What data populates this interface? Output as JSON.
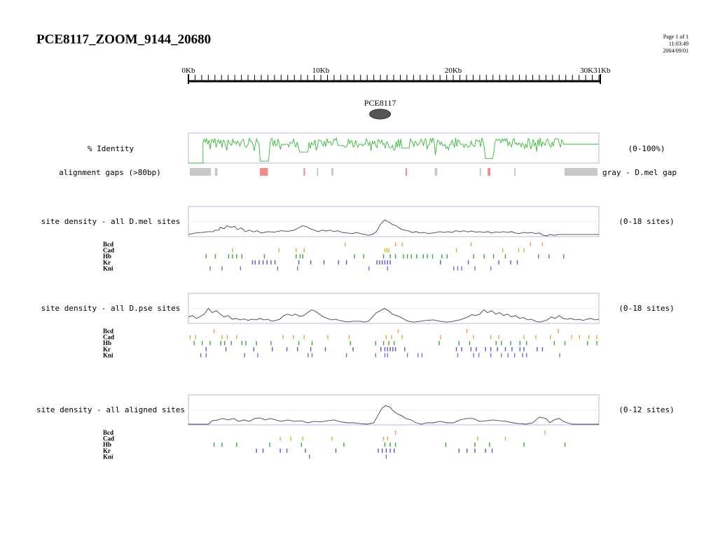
{
  "header": {
    "title": "PCE8117_ZOOM_9144_20680",
    "page": "Page 1 of 1",
    "time": "11:03:49",
    "date": "2004/09/01"
  },
  "ruler": {
    "ticks": [
      {
        "label": "0Kb",
        "kb": 0
      },
      {
        "label": "10Kb",
        "kb": 10
      },
      {
        "label": "20Kb",
        "kb": 20
      },
      {
        "label": "30K",
        "kb": 30
      },
      {
        "label": "31Kb",
        "kb": 31
      }
    ],
    "max_kb": 31
  },
  "feature": {
    "label": "PCE8117",
    "center_kb": 15.0
  },
  "identity": {
    "label": "% Identity",
    "range_label": "(0-100%)",
    "color": "#33bb33"
  },
  "gaps": {
    "label": "alignment gaps (>80bp)",
    "legend": "gray - D.mel gap",
    "gray_color": "#c8c8c8",
    "red_color": "#f28a8a",
    "items": [
      {
        "start": 0.1,
        "end": 1.7,
        "type": "gray"
      },
      {
        "start": 2.0,
        "end": 2.2,
        "type": "gray"
      },
      {
        "start": 5.4,
        "end": 6.0,
        "type": "red"
      },
      {
        "start": 8.7,
        "end": 8.8,
        "type": "red"
      },
      {
        "start": 9.7,
        "end": 9.8,
        "type": "gray"
      },
      {
        "start": 10.8,
        "end": 10.95,
        "type": "gray"
      },
      {
        "start": 16.4,
        "end": 16.5,
        "type": "red"
      },
      {
        "start": 18.6,
        "end": 18.8,
        "type": "gray"
      },
      {
        "start": 22.0,
        "end": 22.1,
        "type": "gray"
      },
      {
        "start": 22.6,
        "end": 22.8,
        "type": "red"
      },
      {
        "start": 24.6,
        "end": 24.7,
        "type": "gray"
      },
      {
        "start": 28.4,
        "end": 30.9,
        "type": "gray"
      }
    ]
  },
  "factor_colors": {
    "Bcd": "#ff9955",
    "Cad": "#d7b23c",
    "Hb": "#33aa33",
    "Kr": "#5555dd",
    "Kni": "#8866dd"
  },
  "panels": [
    {
      "id": "dmel",
      "label": "site density - all D.mel sites",
      "range_label": "(0-18 sites)",
      "sites": {
        "Bcd": [
          11.8,
          15.6,
          16.1,
          21.3,
          25.8,
          26.7
        ],
        "Cad": [
          3.3,
          6.8,
          8.1,
          8.7,
          14.8,
          14.95,
          15.1,
          20.2,
          23.7,
          24.9,
          25.3
        ],
        "Hb": [
          1.3,
          2.0,
          3.0,
          3.3,
          3.6,
          4.0,
          5.7,
          8.1,
          8.4,
          8.6,
          12.5,
          13.2,
          14.7,
          15.2,
          15.6,
          16.2,
          16.5,
          16.8,
          17.2,
          17.7,
          18.0,
          18.4,
          19.1,
          19.5,
          21.5,
          22.3,
          23.0,
          23.9,
          26.4,
          27.2,
          28.3
        ],
        "Kr": [
          4.8,
          5.0,
          5.3,
          5.6,
          5.9,
          6.2,
          6.5,
          8.3,
          9.2,
          10.2,
          11.3,
          11.9,
          14.2,
          14.4,
          14.6,
          14.8,
          15.0,
          15.2,
          19.0,
          21.1,
          23.4,
          24.3,
          24.8
        ],
        "Kni": [
          1.6,
          2.5,
          3.9,
          6.7,
          8.2,
          13.6,
          15.0,
          20.0,
          20.3,
          20.6,
          21.6,
          22.8
        ]
      },
      "density": [
        [
          0,
          0.05
        ],
        [
          0.5,
          0.1
        ],
        [
          1,
          0.12
        ],
        [
          1.5,
          0.15
        ],
        [
          1.9,
          0.15
        ],
        [
          2,
          0.2
        ],
        [
          2.3,
          0.2
        ],
        [
          2.4,
          0.3
        ],
        [
          2.7,
          0.25
        ],
        [
          2.9,
          0.35
        ],
        [
          3.2,
          0.3
        ],
        [
          3.5,
          0.33
        ],
        [
          3.7,
          0.22
        ],
        [
          4,
          0.28
        ],
        [
          4.3,
          0.15
        ],
        [
          4.6,
          0.2
        ],
        [
          4.9,
          0.14
        ],
        [
          5.2,
          0.18
        ],
        [
          5.5,
          0.1
        ],
        [
          6,
          0.15
        ],
        [
          6.5,
          0.13
        ],
        [
          7,
          0.18
        ],
        [
          7.5,
          0.16
        ],
        [
          8,
          0.2
        ],
        [
          8.3,
          0.28
        ],
        [
          8.6,
          0.35
        ],
        [
          8.9,
          0.33
        ],
        [
          9.2,
          0.25
        ],
        [
          9.5,
          0.2
        ],
        [
          9.8,
          0.15
        ],
        [
          10.1,
          0.2
        ],
        [
          10.4,
          0.17
        ],
        [
          10.7,
          0.2
        ],
        [
          11,
          0.15
        ],
        [
          11.3,
          0.18
        ],
        [
          11.6,
          0.12
        ],
        [
          12,
          0.1
        ],
        [
          12.4,
          0.08
        ],
        [
          12.7,
          0.12
        ],
        [
          13,
          0.08
        ],
        [
          13.3,
          0.05
        ],
        [
          13.6,
          0.02
        ],
        [
          13.9,
          0.05
        ],
        [
          14.2,
          0.15
        ],
        [
          14.5,
          0.4
        ],
        [
          14.8,
          0.55
        ],
        [
          15.1,
          0.5
        ],
        [
          15.4,
          0.4
        ],
        [
          15.7,
          0.35
        ],
        [
          16,
          0.25
        ],
        [
          16.3,
          0.2
        ],
        [
          16.6,
          0.18
        ],
        [
          16.9,
          0.12
        ],
        [
          17.2,
          0.15
        ],
        [
          17.5,
          0.1
        ],
        [
          17.8,
          0.12
        ],
        [
          18.1,
          0.08
        ],
        [
          18.4,
          0.1
        ],
        [
          18.7,
          0.12
        ],
        [
          19,
          0.15
        ],
        [
          19.3,
          0.12
        ],
        [
          19.6,
          0.15
        ],
        [
          19.9,
          0.12
        ],
        [
          20.2,
          0.18
        ],
        [
          20.5,
          0.15
        ],
        [
          20.8,
          0.18
        ],
        [
          21.1,
          0.14
        ],
        [
          21.4,
          0.17
        ],
        [
          21.7,
          0.13
        ],
        [
          22,
          0.15
        ],
        [
          22.3,
          0.12
        ],
        [
          22.6,
          0.15
        ],
        [
          22.9,
          0.1
        ],
        [
          23.2,
          0.14
        ],
        [
          23.5,
          0.12
        ],
        [
          23.8,
          0.15
        ],
        [
          24.1,
          0.12
        ],
        [
          24.4,
          0.15
        ],
        [
          24.7,
          0.1
        ],
        [
          25,
          0.08
        ],
        [
          25.3,
          0.12
        ],
        [
          25.6,
          0.1
        ],
        [
          25.9,
          0.12
        ],
        [
          26.2,
          0.08
        ],
        [
          26.5,
          0.1
        ],
        [
          26.8,
          0.02
        ],
        [
          27.1,
          0.0
        ],
        [
          27.3,
          0.05
        ],
        [
          27.6,
          0.02
        ],
        [
          28,
          0.05
        ],
        [
          29,
          0.05
        ],
        [
          31,
          0.05
        ]
      ]
    },
    {
      "id": "dpse",
      "label": "site density - all D.pse sites",
      "range_label": "(0-18 sites)",
      "sites": {
        "Bcd": [
          1.9,
          15.8,
          21.0,
          27.9
        ],
        "Cad": [
          0.1,
          0.5,
          2.5,
          2.9,
          3.6,
          7.1,
          7.9,
          8.7,
          10.5,
          12.1,
          14.9,
          15.3,
          16.1,
          19.0,
          21.5,
          22.8,
          23.4,
          25.3,
          26.2,
          27.3,
          28.9,
          29.5,
          30.2,
          30.8
        ],
        "Hb": [
          0.4,
          1.0,
          1.6,
          2.4,
          2.7,
          3.2,
          4.0,
          4.3,
          5.1,
          6.2,
          8.3,
          9.3,
          12.2,
          14.1,
          14.7,
          15.1,
          15.5,
          18.9,
          20.4,
          21.2,
          23.2,
          23.6,
          24.3,
          25.0,
          25.5,
          27.6,
          28.4,
          30.1,
          30.8
        ],
        "Kr": [
          1.3,
          2.8,
          4.9,
          6.3,
          7.4,
          8.2,
          9.2,
          10.3,
          12.4,
          14.5,
          14.8,
          15.0,
          15.2,
          15.4,
          15.6,
          16.3,
          20.2,
          20.6,
          21.3,
          21.7,
          22.4,
          22.8,
          23.3,
          23.9,
          24.4,
          25.0,
          25.3,
          26.3,
          26.7
        ],
        "Kni": [
          0.9,
          1.3,
          4.2,
          5.2,
          9.0,
          9.3,
          11.9,
          14.1,
          14.8,
          15.0,
          16.5,
          17.3,
          17.6,
          20.3,
          21.5,
          21.9,
          22.8,
          23.6,
          24.1,
          24.6,
          25.2,
          25.5,
          28.0
        ]
      },
      "density": [
        [
          0,
          0.2
        ],
        [
          0.3,
          0.25
        ],
        [
          0.6,
          0.15
        ],
        [
          0.9,
          0.22
        ],
        [
          1.2,
          0.3
        ],
        [
          1.5,
          0.5
        ],
        [
          1.8,
          0.35
        ],
        [
          2.1,
          0.42
        ],
        [
          2.4,
          0.3
        ],
        [
          2.7,
          0.2
        ],
        [
          3,
          0.25
        ],
        [
          3.3,
          0.12
        ],
        [
          3.6,
          0.15
        ],
        [
          3.9,
          0.1
        ],
        [
          4.2,
          0.13
        ],
        [
          4.5,
          0.08
        ],
        [
          4.8,
          0.12
        ],
        [
          5.1,
          0.1
        ],
        [
          5.4,
          0.15
        ],
        [
          5.7,
          0.1
        ],
        [
          6,
          0.12
        ],
        [
          6.3,
          0.05
        ],
        [
          6.6,
          0.08
        ],
        [
          6.9,
          0.12
        ],
        [
          7.2,
          0.25
        ],
        [
          7.5,
          0.3
        ],
        [
          7.8,
          0.25
        ],
        [
          8.1,
          0.3
        ],
        [
          8.4,
          0.22
        ],
        [
          8.7,
          0.25
        ],
        [
          9,
          0.35
        ],
        [
          9.3,
          0.45
        ],
        [
          9.6,
          0.4
        ],
        [
          9.9,
          0.3
        ],
        [
          10.2,
          0.2
        ],
        [
          10.5,
          0.15
        ],
        [
          10.8,
          0.1
        ],
        [
          11.1,
          0.12
        ],
        [
          11.4,
          0.08
        ],
        [
          11.7,
          0.05
        ],
        [
          12,
          0.03
        ],
        [
          12.5,
          0.05
        ],
        [
          13,
          0.05
        ],
        [
          13.3,
          0.02
        ],
        [
          13.6,
          0.05
        ],
        [
          13.9,
          0.2
        ],
        [
          14.2,
          0.35
        ],
        [
          14.5,
          0.42
        ],
        [
          14.8,
          0.5
        ],
        [
          15.1,
          0.42
        ],
        [
          15.4,
          0.3
        ],
        [
          15.7,
          0.25
        ],
        [
          16,
          0.2
        ],
        [
          16.3,
          0.12
        ],
        [
          16.6,
          0.05
        ],
        [
          17,
          0.02
        ],
        [
          17.5,
          0.05
        ],
        [
          18,
          0.08
        ],
        [
          18.5,
          0.1
        ],
        [
          19,
          0.05
        ],
        [
          19.5,
          0.02
        ],
        [
          20,
          0.05
        ],
        [
          20.5,
          0.1
        ],
        [
          20.8,
          0.15
        ],
        [
          21.1,
          0.2
        ],
        [
          21.4,
          0.28
        ],
        [
          21.7,
          0.25
        ],
        [
          22,
          0.3
        ],
        [
          22.3,
          0.45
        ],
        [
          22.6,
          0.35
        ],
        [
          22.9,
          0.42
        ],
        [
          23.2,
          0.3
        ],
        [
          23.5,
          0.35
        ],
        [
          23.8,
          0.25
        ],
        [
          24.1,
          0.3
        ],
        [
          24.4,
          0.2
        ],
        [
          24.7,
          0.25
        ],
        [
          25,
          0.15
        ],
        [
          25.3,
          0.18
        ],
        [
          25.6,
          0.1
        ],
        [
          25.9,
          0.12
        ],
        [
          26.2,
          0.05
        ],
        [
          26.5,
          0.02
        ],
        [
          26.8,
          0.05
        ],
        [
          27.1,
          0.1
        ],
        [
          27.4,
          0.2
        ],
        [
          27.7,
          0.15
        ],
        [
          28,
          0.25
        ],
        [
          28.3,
          0.15
        ],
        [
          28.6,
          0.12
        ],
        [
          28.9,
          0.15
        ],
        [
          29.2,
          0.1
        ],
        [
          29.5,
          0.12
        ],
        [
          29.8,
          0.08
        ],
        [
          30.1,
          0.12
        ],
        [
          30.4,
          0.15
        ],
        [
          30.7,
          0.1
        ],
        [
          31,
          0.12
        ]
      ]
    },
    {
      "id": "aligned",
      "label": "site density - all aligned sites",
      "range_label": "(0-12 sites)",
      "sites": {
        "Bcd": [
          15.6,
          26.9
        ],
        "Cad": [
          6.9,
          7.7,
          8.6,
          10.8,
          14.7,
          15.0,
          21.8,
          23.9
        ],
        "Hb": [
          1.9,
          2.5,
          3.6,
          6.1,
          8.5,
          11.7,
          14.8,
          15.2,
          15.6,
          19.4,
          21.6,
          22.7,
          25.3,
          28.4
        ],
        "Kr": [
          5.1,
          5.6,
          6.9,
          7.4,
          8.8,
          11.1,
          14.3,
          14.6,
          14.9,
          15.2,
          15.5,
          20.4,
          21.0,
          21.6,
          22.4,
          22.9
        ],
        "Kni": [
          9.1,
          14.9
        ]
      },
      "density": [
        [
          0,
          0.0
        ],
        [
          1.5,
          0.0
        ],
        [
          1.8,
          0.12
        ],
        [
          2.2,
          0.15
        ],
        [
          2.6,
          0.2
        ],
        [
          3,
          0.15
        ],
        [
          3.4,
          0.2
        ],
        [
          3.8,
          0.1
        ],
        [
          4.2,
          0.15
        ],
        [
          4.6,
          0.1
        ],
        [
          5.0,
          0.2
        ],
        [
          5.4,
          0.22
        ],
        [
          5.8,
          0.15
        ],
        [
          6.2,
          0.2
        ],
        [
          6.6,
          0.15
        ],
        [
          7,
          0.1
        ],
        [
          7.5,
          0.15
        ],
        [
          8,
          0.1
        ],
        [
          8.5,
          0.12
        ],
        [
          9,
          0.05
        ],
        [
          9.5,
          0.1
        ],
        [
          10,
          0.08
        ],
        [
          10.5,
          0.12
        ],
        [
          11,
          0.15
        ],
        [
          11.5,
          0.08
        ],
        [
          12,
          0.05
        ],
        [
          12.5,
          0.05
        ],
        [
          13,
          0.02
        ],
        [
          13.5,
          0.0
        ],
        [
          14,
          0.05
        ],
        [
          14.3,
          0.3
        ],
        [
          14.6,
          0.55
        ],
        [
          14.9,
          0.65
        ],
        [
          15.2,
          0.6
        ],
        [
          15.5,
          0.45
        ],
        [
          15.8,
          0.35
        ],
        [
          16.1,
          0.3
        ],
        [
          16.4,
          0.2
        ],
        [
          16.8,
          0.15
        ],
        [
          17.2,
          0.05
        ],
        [
          17.6,
          0.0
        ],
        [
          18,
          0.05
        ],
        [
          18.5,
          0.05
        ],
        [
          19,
          0.1
        ],
        [
          19.5,
          0.05
        ],
        [
          20,
          0.05
        ],
        [
          20.5,
          0.15
        ],
        [
          21,
          0.2
        ],
        [
          21.5,
          0.2
        ],
        [
          22,
          0.1
        ],
        [
          22.5,
          0.12
        ],
        [
          23,
          0.15
        ],
        [
          23.5,
          0.12
        ],
        [
          24,
          0.1
        ],
        [
          24.5,
          0.05
        ],
        [
          25,
          0.02
        ],
        [
          25.5,
          0.0
        ],
        [
          26,
          0.05
        ],
        [
          26.5,
          0.25
        ],
        [
          27,
          0.2
        ],
        [
          27.3,
          0.05
        ],
        [
          27.6,
          0.15
        ],
        [
          28,
          0.2
        ],
        [
          28.3,
          0.1
        ],
        [
          28.6,
          0.05
        ],
        [
          29,
          0.0
        ],
        [
          31,
          0.0
        ]
      ]
    }
  ]
}
